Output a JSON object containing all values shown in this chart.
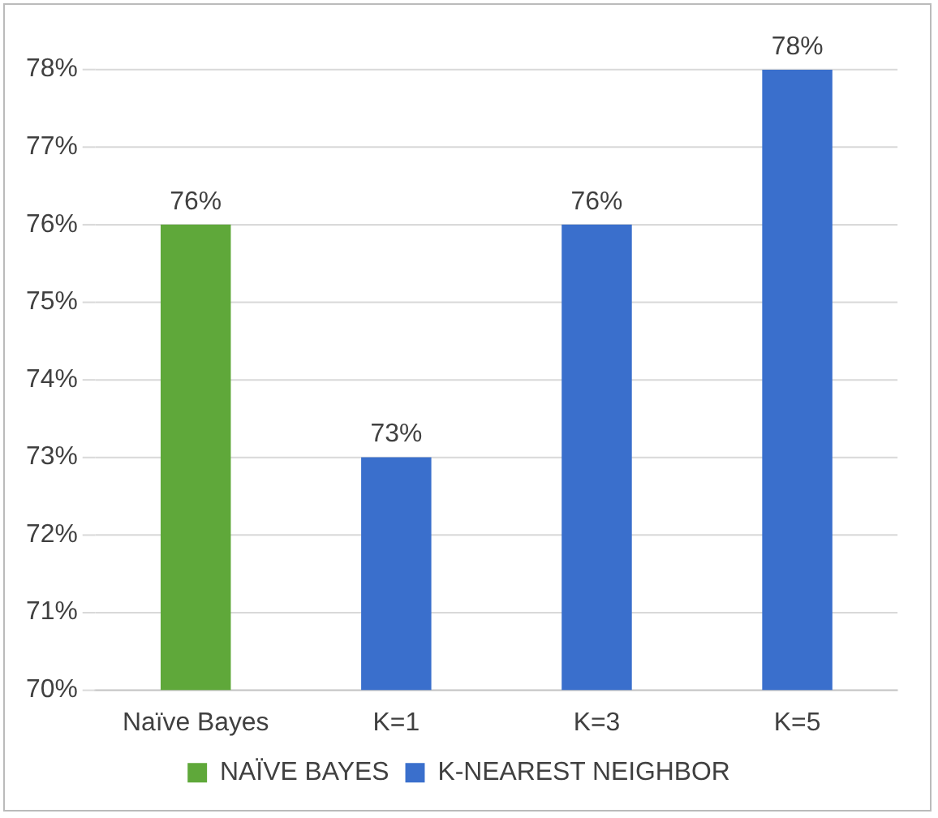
{
  "chart_data": {
    "type": "bar",
    "categories": [
      "Naïve Bayes",
      "K=1",
      "K=3",
      "K=5"
    ],
    "series": [
      {
        "name": "NAÏVE BAYES",
        "color": "#5fa83a",
        "values": [
          76,
          null,
          null,
          null
        ],
        "value_labels": [
          "76%",
          null,
          null,
          null
        ]
      },
      {
        "name": "K-NEAREST NEIGHBOR",
        "color": "#3a6fcc",
        "values": [
          null,
          73,
          76,
          78
        ],
        "value_labels": [
          null,
          "73%",
          "76%",
          "78%"
        ]
      }
    ],
    "ylim": [
      70,
      78
    ],
    "yticks": [
      {
        "value": 70,
        "label": "70%"
      },
      {
        "value": 71,
        "label": "71%"
      },
      {
        "value": 72,
        "label": "72%"
      },
      {
        "value": 73,
        "label": "73%"
      },
      {
        "value": 74,
        "label": "74%"
      },
      {
        "value": 75,
        "label": "75%"
      },
      {
        "value": 76,
        "label": "76%"
      },
      {
        "value": 77,
        "label": "77%"
      },
      {
        "value": 78,
        "label": "78%"
      }
    ],
    "grid": "y",
    "legend": "bottom"
  }
}
